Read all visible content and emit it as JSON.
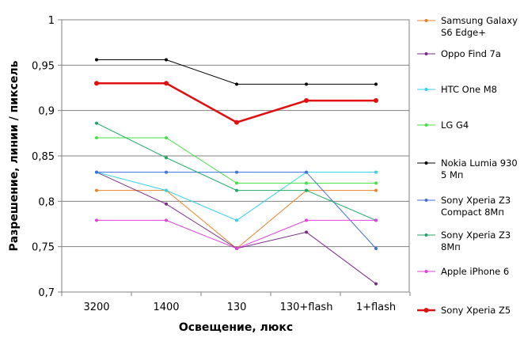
{
  "chart_data": {
    "type": "line",
    "xlabel": "Освещение,  люкс",
    "ylabel": "Разрешение,  линии / пиксель",
    "categories": [
      "3200",
      "1400",
      "130",
      "130+flash",
      "1+flash"
    ],
    "ylim": [
      0.7,
      1.0
    ],
    "yticks": [
      0.7,
      0.75,
      0.8,
      0.85,
      0.9,
      0.95,
      1.0
    ],
    "ytick_labels": [
      "0,7",
      "0,75",
      "0,8",
      "0,85",
      "0,9",
      "0,95",
      "1"
    ],
    "grid": "horizontal",
    "legend_position": "right",
    "series": [
      {
        "name": "Samsung Galaxy S6 Edge+",
        "label_lines": [
          "Samsung Galaxy",
          "S6 Edge+"
        ],
        "color": "#e8822e",
        "values": [
          0.812,
          0.812,
          0.748,
          0.812,
          0.812
        ]
      },
      {
        "name": "Oppo Find 7a",
        "label_lines": [
          "Oppo Find 7a"
        ],
        "color": "#7b2a8a",
        "values": [
          0.832,
          0.797,
          0.748,
          0.766,
          0.709
        ]
      },
      {
        "name": "HTC One M8",
        "label_lines": [
          "HTC One M8"
        ],
        "color": "#2ed3e8",
        "values": [
          0.832,
          0.812,
          0.779,
          0.832,
          0.832
        ]
      },
      {
        "name": "LG G4",
        "label_lines": [
          "LG G4"
        ],
        "color": "#44e044",
        "values": [
          0.87,
          0.87,
          0.82,
          0.82,
          0.82
        ]
      },
      {
        "name": "Nokia Lumia 930 5 Мп",
        "label_lines": [
          "Nokia Lumia 930",
          "5 Мп"
        ],
        "color": "#000000",
        "values": [
          0.956,
          0.956,
          0.929,
          0.929,
          0.929
        ]
      },
      {
        "name": "Sony Xperia Z3 Compact 8Мп",
        "label_lines": [
          "Sony Xperia Z3",
          "Compact 8Мп"
        ],
        "color": "#3f6fe0",
        "values": [
          0.832,
          0.832,
          0.832,
          0.832,
          0.748
        ]
      },
      {
        "name": "Sony Xperia Z3 8Мп",
        "label_lines": [
          "Sony Xperia Z3",
          "8Мп"
        ],
        "color": "#1fa866",
        "values": [
          0.886,
          0.848,
          0.812,
          0.812,
          0.779
        ]
      },
      {
        "name": "Apple iPhone 6",
        "label_lines": [
          "Apple iPhone 6"
        ],
        "color": "#e040e0",
        "values": [
          0.779,
          0.779,
          0.748,
          0.779,
          0.779
        ]
      },
      {
        "name": "Sony Xperia Z5",
        "label_lines": [
          "Sony Xperia Z5"
        ],
        "color": "#e01010",
        "bold": true,
        "values": [
          0.93,
          0.93,
          0.887,
          0.911,
          0.911
        ]
      }
    ]
  }
}
